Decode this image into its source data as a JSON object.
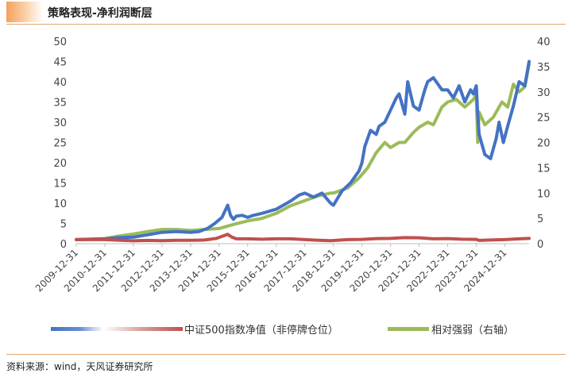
{
  "header": {
    "title": "策略表现-净利润断层"
  },
  "footer": {
    "source": "资料来源：wind，天风证券研究所"
  },
  "chart_data": {
    "type": "line",
    "title": "策略表现-净利润断层",
    "left_axis": {
      "min": 0,
      "max": 50,
      "ticks": [
        0,
        5,
        10,
        15,
        20,
        25,
        30,
        35,
        40,
        45,
        50
      ]
    },
    "right_axis": {
      "min": 0,
      "max": 40,
      "ticks": [
        0,
        5,
        10,
        15,
        20,
        25,
        30,
        35,
        40
      ]
    },
    "x_ticks": [
      "2009-12-31",
      "2010-12-31",
      "2011-12-31",
      "2012-12-31",
      "2013-12-31",
      "2014-12-31",
      "2015-12-31",
      "2016-12-31",
      "2017-12-31",
      "2018-12-31",
      "2019-12-31",
      "2020-12-31",
      "2021-12-31",
      "2022-12-31",
      "2023-12-31",
      "2024-12-31"
    ],
    "x_range": [
      2010.0,
      2025.85
    ],
    "series": [
      {
        "name": "净利润断层",
        "axis": "left",
        "color": "#4472c4",
        "x": [
          2010.0,
          2010.5,
          2011.0,
          2011.5,
          2012.0,
          2012.5,
          2013.0,
          2013.5,
          2014.0,
          2014.3,
          2014.6,
          2014.85,
          2015.1,
          2015.3,
          2015.4,
          2015.5,
          2015.6,
          2015.8,
          2016.0,
          2016.2,
          2016.5,
          2017.0,
          2017.5,
          2017.8,
          2018.0,
          2018.3,
          2018.6,
          2018.9,
          2019.0,
          2019.3,
          2019.6,
          2019.9,
          2020.0,
          2020.1,
          2020.3,
          2020.5,
          2020.6,
          2020.8,
          2021.0,
          2021.2,
          2021.3,
          2021.5,
          2021.6,
          2021.8,
          2022.0,
          2022.2,
          2022.3,
          2022.5,
          2022.8,
          2023.0,
          2023.2,
          2023.4,
          2023.6,
          2023.8,
          2023.9,
          2024.0,
          2024.05,
          2024.1,
          2024.3,
          2024.5,
          2024.7,
          2024.8,
          2024.95,
          2025.1,
          2025.3,
          2025.5,
          2025.7,
          2025.85
        ],
        "values": [
          1.0,
          1.1,
          1.2,
          1.5,
          1.6,
          2.2,
          2.8,
          3.0,
          2.8,
          3.0,
          3.8,
          5.0,
          6.5,
          9.5,
          7.0,
          6.0,
          6.8,
          7.0,
          6.5,
          7.0,
          7.5,
          8.5,
          10.5,
          12.0,
          12.5,
          11.5,
          12.5,
          10.0,
          9.5,
          13.0,
          15.0,
          18.0,
          20.0,
          24.0,
          28.0,
          27.0,
          29.0,
          30.0,
          33.0,
          36.0,
          37.0,
          32.0,
          40.0,
          34.0,
          33.0,
          38.0,
          40.0,
          41.0,
          38.0,
          38.0,
          36.0,
          39.0,
          35.0,
          38.0,
          37.0,
          39.0,
          32.0,
          27.0,
          22.0,
          21.0,
          26.0,
          30.0,
          25.0,
          29.0,
          34.0,
          40.0,
          39.0,
          45.0
        ]
      },
      {
        "name": "中证500指数净值（非停牌仓位）",
        "axis": "left",
        "color": "#c0504d",
        "x": [
          2010.0,
          2011.0,
          2012.0,
          2012.5,
          2013.0,
          2013.5,
          2014.0,
          2014.5,
          2014.9,
          2015.3,
          2015.45,
          2015.6,
          2016.0,
          2016.5,
          2017.0,
          2017.5,
          2018.0,
          2018.5,
          2018.9,
          2019.5,
          2020.0,
          2020.5,
          2021.0,
          2021.5,
          2022.0,
          2022.5,
          2023.0,
          2023.5,
          2024.0,
          2024.1,
          2024.5,
          2025.0,
          2025.5,
          2025.85
        ],
        "values": [
          1.0,
          1.0,
          0.7,
          0.8,
          0.75,
          0.85,
          0.85,
          0.9,
          1.3,
          2.3,
          1.6,
          1.2,
          1.2,
          1.1,
          1.2,
          1.2,
          1.0,
          0.85,
          0.75,
          1.0,
          1.05,
          1.25,
          1.3,
          1.5,
          1.45,
          1.2,
          1.25,
          1.1,
          1.05,
          0.8,
          0.9,
          1.0,
          1.2,
          1.3
        ]
      },
      {
        "name": "相对强弱（右轴）",
        "axis": "right",
        "color": "#9bbb59",
        "x": [
          2010.0,
          2010.5,
          2011.0,
          2011.5,
          2012.0,
          2012.5,
          2013.0,
          2013.5,
          2014.0,
          2014.5,
          2015.0,
          2015.5,
          2016.0,
          2016.5,
          2017.0,
          2017.5,
          2018.0,
          2018.5,
          2018.9,
          2019.0,
          2019.5,
          2019.9,
          2020.2,
          2020.5,
          2020.8,
          2021.0,
          2021.3,
          2021.5,
          2021.8,
          2022.0,
          2022.3,
          2022.5,
          2022.8,
          2023.0,
          2023.3,
          2023.6,
          2023.9,
          2024.0,
          2024.05,
          2024.1,
          2024.3,
          2024.6,
          2024.9,
          2025.1,
          2025.3,
          2025.5,
          2025.7,
          2025.85
        ],
        "values": [
          0.8,
          0.9,
          1.0,
          1.5,
          1.9,
          2.4,
          2.8,
          2.8,
          2.6,
          2.8,
          3.0,
          3.8,
          4.5,
          5.0,
          6.0,
          7.5,
          8.5,
          9.5,
          10.0,
          10.0,
          11.0,
          13.0,
          15.0,
          18.0,
          20.0,
          19.0,
          20.0,
          20.0,
          22.0,
          23.0,
          24.0,
          23.5,
          27.0,
          28.0,
          28.5,
          27.0,
          28.5,
          29.5,
          20.0,
          26.0,
          23.5,
          25.0,
          28.0,
          27.0,
          31.5,
          30.0,
          31.0,
          35.5
        ]
      }
    ],
    "legend": {
      "placement": "bottom",
      "items": [
        {
          "label": "中证500指数净值（非停牌仓位）",
          "color": "#c0504d",
          "style": "gradient"
        },
        {
          "label": "相对强弱（右轴）",
          "color": "#9bbb59",
          "style": "solid"
        }
      ]
    },
    "grid": false
  }
}
